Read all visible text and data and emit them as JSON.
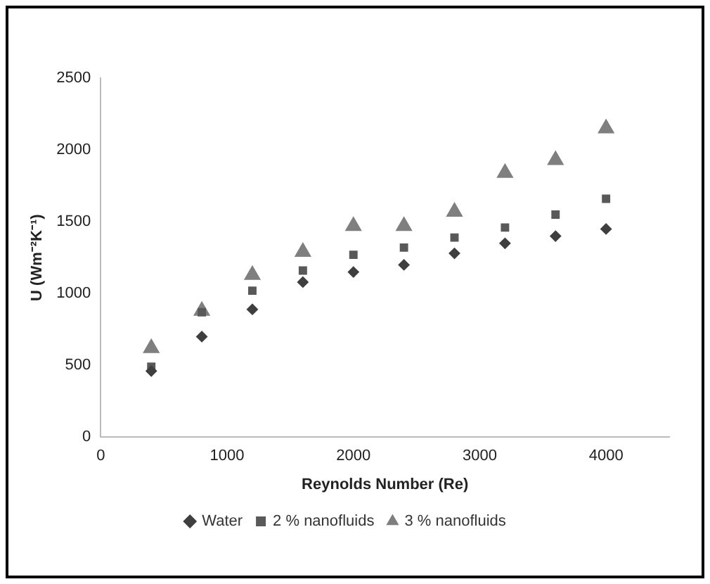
{
  "chart_data": {
    "type": "scatter",
    "xlabel": "Reynolds Number (Re)",
    "ylabel": "U (Wm⁻²K⁻¹)",
    "x": [
      400,
      800,
      1200,
      1600,
      2000,
      2400,
      2800,
      3200,
      3600,
      4000
    ],
    "series": [
      {
        "name": "Water",
        "color": "#3f3f3f",
        "marker": "diamond",
        "values": [
          460,
          700,
          890,
          1080,
          1150,
          1200,
          1280,
          1350,
          1400,
          1450
        ]
      },
      {
        "name": "2 % nanofluids",
        "color": "#595959",
        "marker": "square",
        "values": [
          490,
          870,
          1020,
          1160,
          1270,
          1320,
          1390,
          1460,
          1550,
          1660
        ]
      },
      {
        "name": "3 % nanofluids",
        "color": "#7f7f7f",
        "marker": "triangle",
        "values": [
          620,
          880,
          1130,
          1290,
          1470,
          1470,
          1570,
          1840,
          1930,
          2150
        ]
      }
    ],
    "xlim": [
      0,
      4500
    ],
    "xticks": [
      0,
      1000,
      2000,
      3000,
      4000
    ],
    "ylim": [
      0,
      2500
    ],
    "yticks": [
      0,
      500,
      1000,
      1500,
      2000,
      2500
    ],
    "grid": false,
    "legend": "bottom"
  }
}
